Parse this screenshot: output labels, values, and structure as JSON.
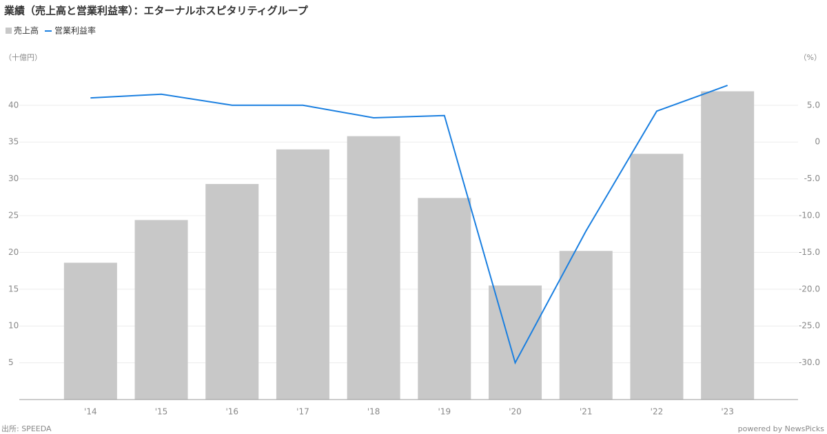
{
  "chart_data": {
    "type": "bar-line",
    "title": "業績（売上高と営業利益率）：エターナルホスピタリティグループ",
    "y_label": "（十億円）",
    "y2_label": "（%）",
    "source": "出所: SPEEDA",
    "credit": "powered by NewsPicks",
    "categories": [
      "'14",
      "'15",
      "'16",
      "'17",
      "'18",
      "'19",
      "'20",
      "'21",
      "'22",
      "'23"
    ],
    "series": [
      {
        "name": "売上高",
        "color": "#c8c8c8",
        "type": "bar",
        "values": [
          18.6,
          24.4,
          29.3,
          34.0,
          35.8,
          27.4,
          15.5,
          20.2,
          33.4,
          41.9
        ]
      },
      {
        "name": "営業利益率",
        "color": "#1a7fe0",
        "type": "line",
        "axis": "y2",
        "values": [
          6.0,
          6.5,
          5.0,
          5.0,
          3.3,
          3.6,
          -30.0,
          -12.1,
          4.2,
          7.7
        ]
      }
    ],
    "ylim": [
      0,
      45
    ],
    "yticks": [
      5,
      10,
      15,
      20,
      25,
      30,
      35,
      40
    ],
    "y2lim": [
      -35,
      10
    ],
    "y2ticks": [
      {
        "value": 5,
        "label": "5.0"
      },
      0,
      {
        "value": -5,
        "label": "-5.0"
      },
      {
        "value": -10,
        "label": "-10.0"
      },
      {
        "value": -15,
        "label": "-15.0"
      },
      {
        "value": -20,
        "label": "-20.0"
      },
      {
        "value": -25,
        "label": "-25.0"
      },
      {
        "value": -30,
        "label": "-30.0"
      }
    ],
    "grid": true
  }
}
